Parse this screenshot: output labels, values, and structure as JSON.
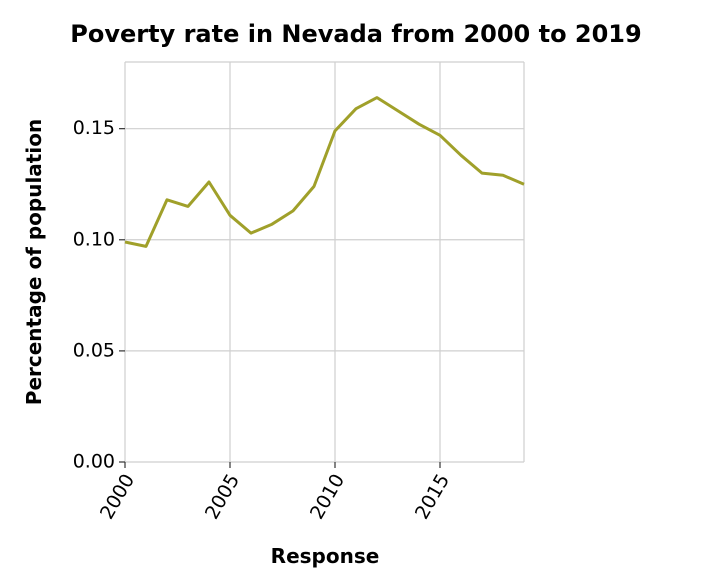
{
  "chart_data": {
    "type": "line",
    "title": "Poverty rate in Nevada from 2000 to 2019",
    "xlabel": "Response",
    "ylabel": "Percentage of population",
    "xlim": [
      2000,
      2019
    ],
    "ylim": [
      0,
      0.18
    ],
    "xticks": [
      2000,
      2005,
      2010,
      2015
    ],
    "xtick_labels": [
      "2000",
      "2005",
      "2010",
      "2015"
    ],
    "yticks": [
      0.0,
      0.05,
      0.1,
      0.15
    ],
    "ytick_labels": [
      "0.00",
      "0.05",
      "0.10",
      "0.15"
    ],
    "grid": true,
    "line_color": "#a0a02a",
    "series": [
      {
        "x": [
          2000,
          2001,
          2002,
          2003,
          2004,
          2005,
          2006,
          2007,
          2008,
          2009,
          2010,
          2011,
          2012,
          2013,
          2014,
          2015,
          2016,
          2017,
          2018,
          2019
        ],
        "values": [
          0.099,
          0.097,
          0.118,
          0.115,
          0.126,
          0.111,
          0.103,
          0.107,
          0.113,
          0.124,
          0.149,
          0.159,
          0.164,
          0.158,
          0.152,
          0.147,
          0.138,
          0.13,
          0.129,
          0.125
        ]
      }
    ]
  }
}
